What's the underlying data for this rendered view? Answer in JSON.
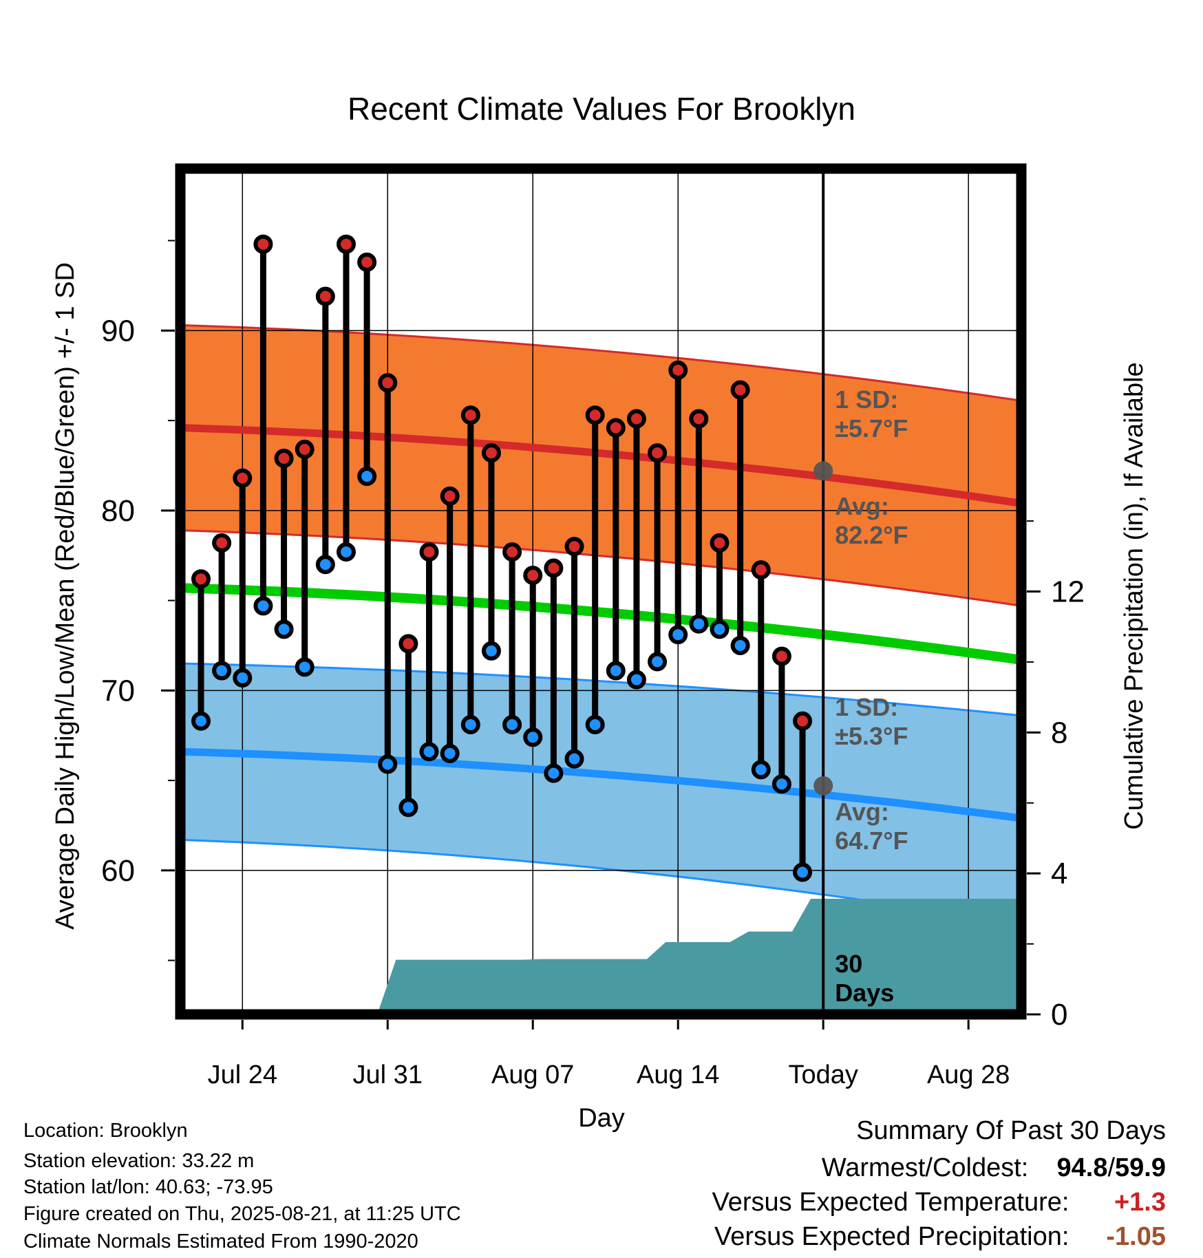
{
  "chart_data": {
    "type": "line",
    "title": "Recent Climate Values For Brooklyn",
    "xlabel": "Day",
    "ylabel": "Average Daily High/Low/Mean (Red/Blue/Green) +/- 1 SD",
    "y2label": "Cumulative Precipitation (in), If Available",
    "ylim": [
      52,
      99
    ],
    "y2lim": [
      0,
      24
    ],
    "y_ticks": [
      "60",
      "70",
      "80",
      "90"
    ],
    "y2_ticks": [
      "0",
      "4",
      "8",
      "12"
    ],
    "x_ticks": [
      "Jul 24",
      "Jul 31",
      "Aug 07",
      "Aug 14",
      "Today",
      "Aug 28"
    ],
    "grid": true,
    "days": [
      "Jul 22",
      "Jul 23",
      "Jul 24",
      "Jul 25",
      "Jul 26",
      "Jul 27",
      "Jul 28",
      "Jul 29",
      "Jul 30",
      "Jul 31",
      "Aug 01",
      "Aug 02",
      "Aug 03",
      "Aug 04",
      "Aug 05",
      "Aug 06",
      "Aug 07",
      "Aug 08",
      "Aug 09",
      "Aug 10",
      "Aug 11",
      "Aug 12",
      "Aug 13",
      "Aug 14",
      "Aug 15",
      "Aug 16",
      "Aug 17",
      "Aug 18",
      "Aug 19",
      "Aug 20"
    ],
    "series": [
      {
        "name": "High",
        "color": "#cc2222",
        "values": [
          76.2,
          78.2,
          81.8,
          94.8,
          82.9,
          83.4,
          91.9,
          94.8,
          93.8,
          87.1,
          72.6,
          77.7,
          80.8,
          85.3,
          83.2,
          77.7,
          76.4,
          76.8,
          78.0,
          85.3,
          84.6,
          85.1,
          83.2,
          87.8,
          85.1,
          78.2,
          86.7,
          76.7,
          71.9,
          68.3
        ]
      },
      {
        "name": "Low",
        "color": "#2288ee",
        "values": [
          68.3,
          71.1,
          70.7,
          74.7,
          73.4,
          71.3,
          77.0,
          77.7,
          81.9,
          65.9,
          63.5,
          66.6,
          66.5,
          68.1,
          72.2,
          68.1,
          67.4,
          65.4,
          66.2,
          68.1,
          71.1,
          70.6,
          71.6,
          73.1,
          73.7,
          73.4,
          72.5,
          65.6,
          64.8,
          59.9
        ]
      },
      {
        "name": "Cumulative Precipitation",
        "color": "#4a9aa2",
        "values": [
          0,
          0,
          0,
          0,
          0,
          0,
          0,
          0,
          0,
          1.55,
          1.55,
          1.55,
          1.55,
          1.55,
          1.55,
          1.55,
          1.57,
          1.57,
          1.57,
          1.57,
          1.57,
          1.57,
          2.05,
          2.05,
          2.05,
          2.05,
          2.35,
          2.35,
          2.35,
          3.28
        ]
      }
    ],
    "normals": {
      "x_range": [
        "Jul 21",
        "Aug 30"
      ],
      "high_mean": [
        84.6,
        80.4
      ],
      "high_sd_upper": [
        90.3,
        86.1
      ],
      "high_sd_lower": [
        78.9,
        74.7
      ],
      "mean": [
        75.7,
        71.7
      ],
      "low_mean": [
        66.6,
        62.9
      ],
      "low_sd_upper": [
        71.5,
        68.6
      ],
      "low_sd_lower": [
        61.7,
        57.0
      ]
    },
    "annotations": {
      "high_sd": [
        "1 SD:",
        "±5.7°F"
      ],
      "high_avg": [
        "Avg:",
        "82.2°F"
      ],
      "low_sd": [
        "1 SD:",
        "±5.3°F"
      ],
      "low_avg": [
        "Avg:",
        "64.7°F"
      ],
      "today_high_avg": 82.2,
      "today_low_avg": 64.7,
      "window": [
        "30",
        "Days"
      ]
    },
    "colors": {
      "high_band": "#f47a30",
      "high_line": "#d42a2a",
      "low_band": "#82c0e6",
      "low_line": "#1e90ff",
      "mean_line": "#00cc00",
      "precip": "#4a9aa2",
      "annotation": "#555555"
    }
  },
  "info": {
    "location": "Location: Brooklyn",
    "elevation": "Station elevation: 33.22 m",
    "latlon": "Station lat/lon: 40.63; -73.95",
    "created": "Figure created on Thu, 2025-08-21, at 11:25 UTC",
    "normals": "Climate Normals Estimated From 1990-2020"
  },
  "summary": {
    "heading": "Summary Of Past 30 Days",
    "warm_cold_label": "Warmest/Coldest:",
    "warm_value": "94.8",
    "slash": "/",
    "cold_value": "59.9",
    "temp_label": "Versus Expected Temperature:",
    "temp_value": "+1.3",
    "temp_color": "#cc2222",
    "precip_label": "Versus Expected Precipitation:",
    "precip_value": "-1.05",
    "precip_color": "#a0522d"
  }
}
